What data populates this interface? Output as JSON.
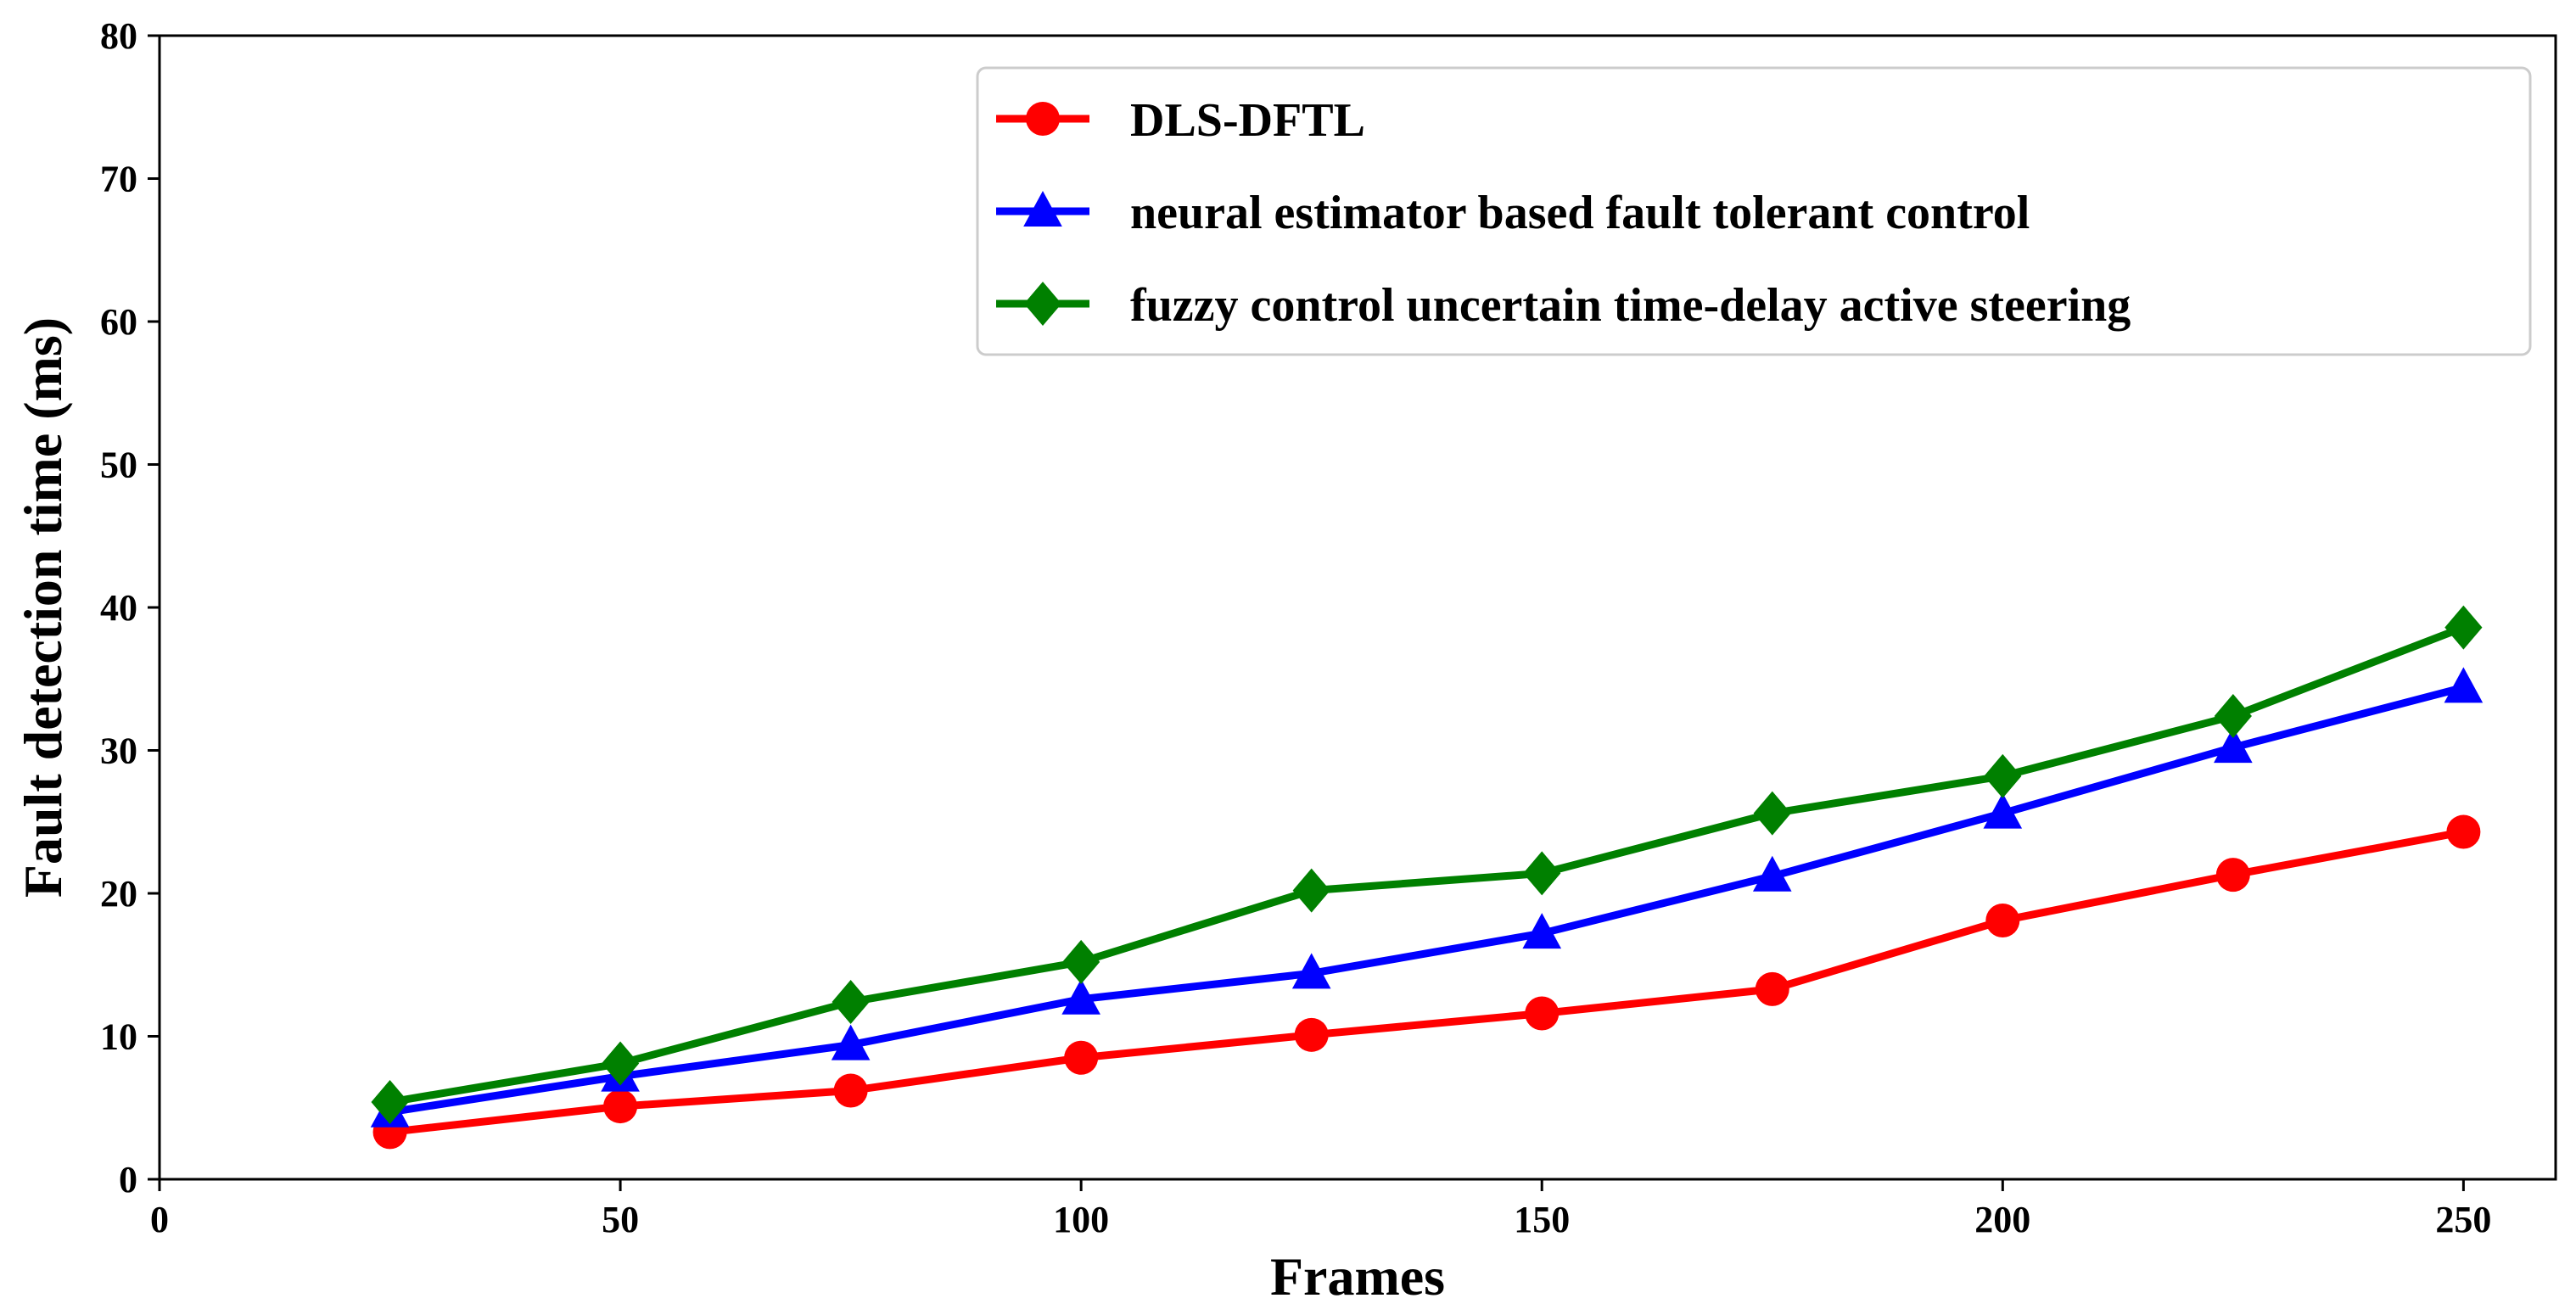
{
  "chart_data": {
    "type": "line",
    "title": "",
    "xlabel": "Frames",
    "ylabel": "Fault detection time (ms)",
    "xlim": [
      0,
      260
    ],
    "ylim": [
      0,
      80
    ],
    "xticks": [
      0,
      50,
      100,
      150,
      200,
      250
    ],
    "yticks": [
      0,
      10,
      20,
      30,
      40,
      50,
      60,
      70,
      80
    ],
    "grid": false,
    "legend_position": "top-right",
    "x": [
      25,
      50,
      75,
      100,
      125,
      150,
      175,
      200,
      225,
      250
    ],
    "series": [
      {
        "name": "DLS-DFTL",
        "color": "#ff0000",
        "marker": "circle",
        "values": [
          3.3,
          5.1,
          6.2,
          8.5,
          10.1,
          11.6,
          13.3,
          18.1,
          21.3,
          24.3
        ]
      },
      {
        "name": "neural estimator based fault tolerant control",
        "color": "#0000ff",
        "marker": "triangle",
        "values": [
          4.7,
          7.2,
          9.4,
          12.6,
          14.4,
          17.2,
          21.2,
          25.6,
          30.2,
          34.4
        ]
      },
      {
        "name": "fuzzy control uncertain time-delay active steering",
        "color": "#008000",
        "marker": "diamond",
        "values": [
          5.4,
          8.1,
          12.4,
          15.2,
          20.2,
          21.4,
          25.6,
          28.2,
          32.4,
          38.6
        ]
      }
    ]
  }
}
